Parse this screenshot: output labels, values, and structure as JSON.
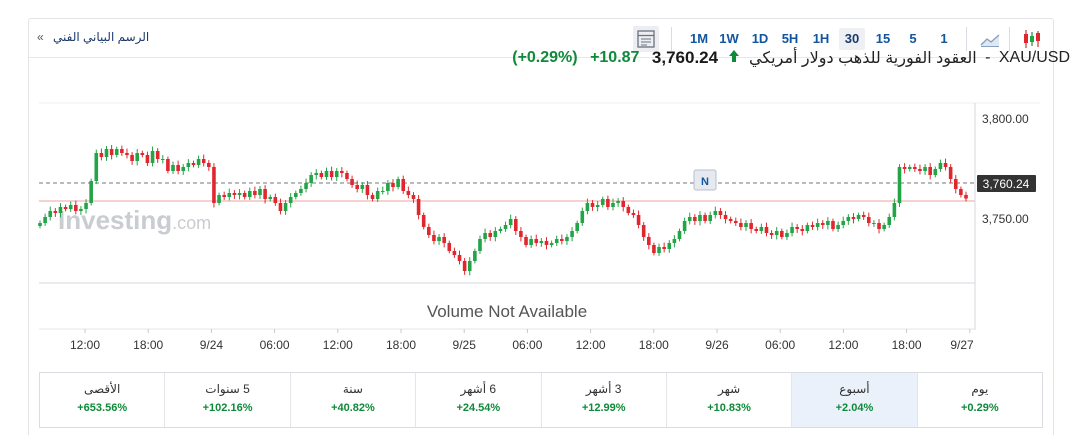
{
  "toolbar": {
    "technical_chart_link": "الرسم البياني الفني",
    "link_chevron": "»",
    "timeframes": [
      "1M",
      "1W",
      "1D",
      "5H",
      "1H",
      "30",
      "15",
      "5",
      "1"
    ],
    "active_timeframe": "30",
    "icons": [
      "table-view-icon",
      "area-chart-icon",
      "candlestick-chart-icon"
    ]
  },
  "instrument": {
    "symbol": "XAU/USD",
    "name": "العقود الفورية للذهب دولار أمريكي",
    "separator": "-",
    "price": "3,760.24",
    "change": "+10.87",
    "change_pct": "(+0.29%)",
    "direction": "up"
  },
  "chart_data": {
    "type": "candlestick",
    "title": "",
    "xlabel": "",
    "ylabel": "",
    "y_ticks": [
      "3,800.00",
      "3,750.00"
    ],
    "y_tick_values": [
      3800,
      3750
    ],
    "ylim": [
      3718,
      3808
    ],
    "last_price": 3760.24,
    "last_price_label": "3,760.24",
    "reference_line": 3749.4,
    "x_tick_labels": [
      "12:00",
      "18:00",
      "9/24",
      "06:00",
      "12:00",
      "18:00",
      "9/25",
      "06:00",
      "12:00",
      "18:00",
      "9/26",
      "06:00",
      "12:00",
      "18:00",
      "9/27"
    ],
    "watermark": "Investing.com",
    "news_marker": "N",
    "volume_text": "Volume Not Available",
    "grid": false,
    "closes": [
      3748,
      3751,
      3754,
      3753,
      3756,
      3755,
      3757,
      3754,
      3755,
      3758,
      3769,
      3783,
      3781,
      3785,
      3782,
      3785,
      3783,
      3782,
      3779,
      3783,
      3782,
      3778,
      3784,
      3780,
      3780,
      3774,
      3777,
      3774,
      3776,
      3778,
      3777,
      3780,
      3778,
      3776,
      3758,
      3762,
      3761,
      3763,
      3762,
      3763,
      3761,
      3764,
      3762,
      3765,
      3760,
      3761,
      3758,
      3754,
      3758,
      3761,
      3763,
      3765,
      3768,
      3772,
      3773,
      3771,
      3774,
      3771,
      3774,
      3773,
      3770,
      3767,
      3765,
      3767,
      3762,
      3760,
      3764,
      3764,
      3768,
      3766,
      3770,
      3764,
      3762,
      3760,
      3752,
      3746,
      3742,
      3739,
      3741,
      3738,
      3734,
      3732,
      3729,
      3724,
      3729,
      3734,
      3740,
      3743,
      3741,
      3744,
      3745,
      3747,
      3750,
      3744,
      3741,
      3737,
      3740,
      3738,
      3739,
      3737,
      3738,
      3740,
      3739,
      3741,
      3744,
      3748,
      3754,
      3758,
      3756,
      3757,
      3760,
      3756,
      3758,
      3759,
      3756,
      3753,
      3752,
      3747,
      3741,
      3737,
      3733,
      3736,
      3735,
      3738,
      3740,
      3744,
      3749,
      3751,
      3749,
      3752,
      3749,
      3752,
      3754,
      3752,
      3750,
      3749,
      3748,
      3746,
      3748,
      3745,
      3744,
      3746,
      3743,
      3742,
      3744,
      3741,
      3743,
      3746,
      3745,
      3744,
      3747,
      3746,
      3748,
      3747,
      3749,
      3745,
      3747,
      3749,
      3751,
      3750,
      3752,
      3751,
      3748,
      3748,
      3745,
      3747,
      3751,
      3758,
      3776,
      3775,
      3776,
      3775,
      3774,
      3776,
      3772,
      3775,
      3778,
      3776,
      3770,
      3765,
      3762,
      3760.24
    ]
  },
  "performance": [
    {
      "label": "يوم",
      "value": "+0.29%",
      "active": false
    },
    {
      "label": "أسبوع",
      "value": "+2.04%",
      "active": true
    },
    {
      "label": "شهر",
      "value": "+10.83%",
      "active": false
    },
    {
      "label": "3 أشهر",
      "value": "+12.99%",
      "active": false
    },
    {
      "label": "6 أشهر",
      "value": "+24.54%",
      "active": false
    },
    {
      "label": "سنة",
      "value": "+40.82%",
      "active": false
    },
    {
      "label": "5 سنوات",
      "value": "+102.16%",
      "active": false
    },
    {
      "label": "الأقصى",
      "value": "+653.56%",
      "active": false
    }
  ],
  "colors": {
    "up": "#22a447",
    "down": "#e0272e",
    "reference_line": "#f2b3b3",
    "accent": "#1256a0",
    "positive_text": "#0e8a3a"
  }
}
